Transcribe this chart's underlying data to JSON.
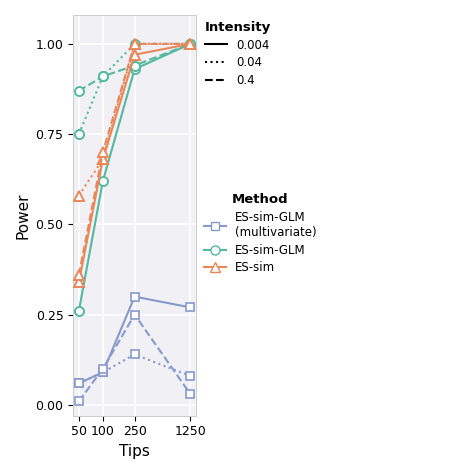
{
  "tips": [
    50,
    100,
    250,
    1250
  ],
  "xlabel": "Tips",
  "ylabel": "Power",
  "ylim": [
    -0.03,
    1.08
  ],
  "colors": {
    "es_sim_glm_multi": "#8899CC",
    "es_sim_glm": "#55B8A0",
    "es_sim": "#E8885A"
  },
  "series": {
    "es_sim_glm_multi_solid": [
      0.06,
      0.09,
      0.3,
      0.27
    ],
    "es_sim_glm_multi_dotted": [
      0.06,
      0.09,
      0.14,
      0.08
    ],
    "es_sim_glm_multi_dashed": [
      0.01,
      0.1,
      0.25,
      0.03
    ],
    "es_sim_glm_solid": [
      0.26,
      0.62,
      0.93,
      1.0
    ],
    "es_sim_glm_dotted": [
      0.75,
      0.91,
      1.0,
      1.0
    ],
    "es_sim_glm_dashed": [
      0.87,
      0.91,
      0.94,
      1.0
    ],
    "es_sim_solid": [
      0.34,
      0.68,
      0.97,
      1.0
    ],
    "es_sim_dotted": [
      0.58,
      0.68,
      1.0,
      1.0
    ],
    "es_sim_dashed": [
      0.36,
      0.7,
      1.0,
      1.0
    ]
  },
  "background": "#F0F0F5",
  "grid_color": "#FFFFFF",
  "yticks": [
    0.0,
    0.25,
    0.5,
    0.75,
    1.0
  ],
  "ytick_labels": [
    "0.00",
    "0.25",
    "0.50",
    "0.75",
    "1.00"
  ],
  "intensity_labels": [
    "0.004",
    "0.04",
    "0.4"
  ],
  "method_labels": [
    "ES-sim-GLM\n(multivariate)",
    "ES-sim-GLM",
    "ES-sim"
  ]
}
